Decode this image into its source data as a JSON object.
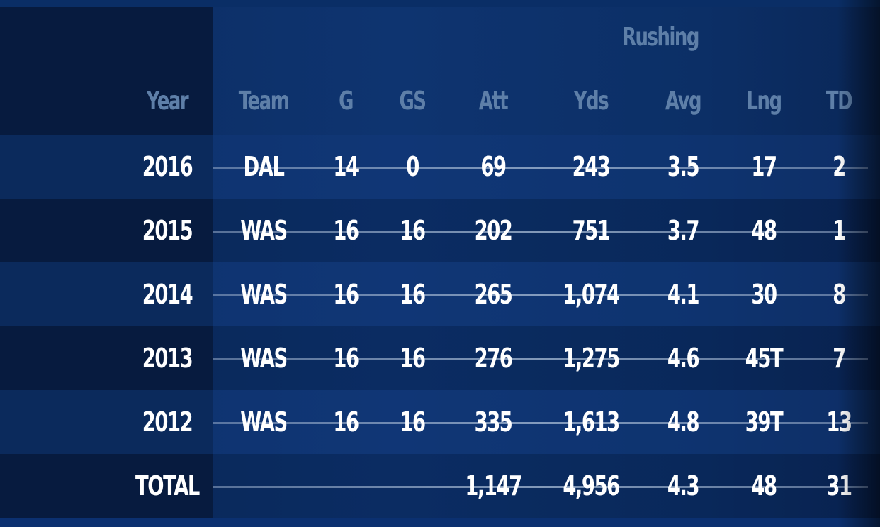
{
  "table": {
    "group_header": "Rushing",
    "columns": [
      "Year",
      "Team",
      "G",
      "GS",
      "Att",
      "Yds",
      "Avg",
      "Lng",
      "TD"
    ],
    "rows": [
      [
        "2016",
        "DAL",
        "14",
        "0",
        "69",
        "243",
        "3.5",
        "17",
        "2"
      ],
      [
        "2015",
        "WAS",
        "16",
        "16",
        "202",
        "751",
        "3.7",
        "48",
        "1"
      ],
      [
        "2014",
        "WAS",
        "16",
        "16",
        "265",
        "1,074",
        "4.1",
        "30",
        "8"
      ],
      [
        "2013",
        "WAS",
        "16",
        "16",
        "276",
        "1,275",
        "4.6",
        "45T",
        "7"
      ],
      [
        "2012",
        "WAS",
        "16",
        "16",
        "335",
        "1,613",
        "4.8",
        "39T",
        "13"
      ],
      [
        "TOTAL",
        "",
        "",
        "",
        "1,147",
        "4,956",
        "4.3",
        "48",
        "31"
      ]
    ]
  },
  "colors": {
    "background": "#0e3470",
    "header_text": "#5e7fa8",
    "cell_text": "#ffffff",
    "year_column_dark": "#071b3f"
  }
}
